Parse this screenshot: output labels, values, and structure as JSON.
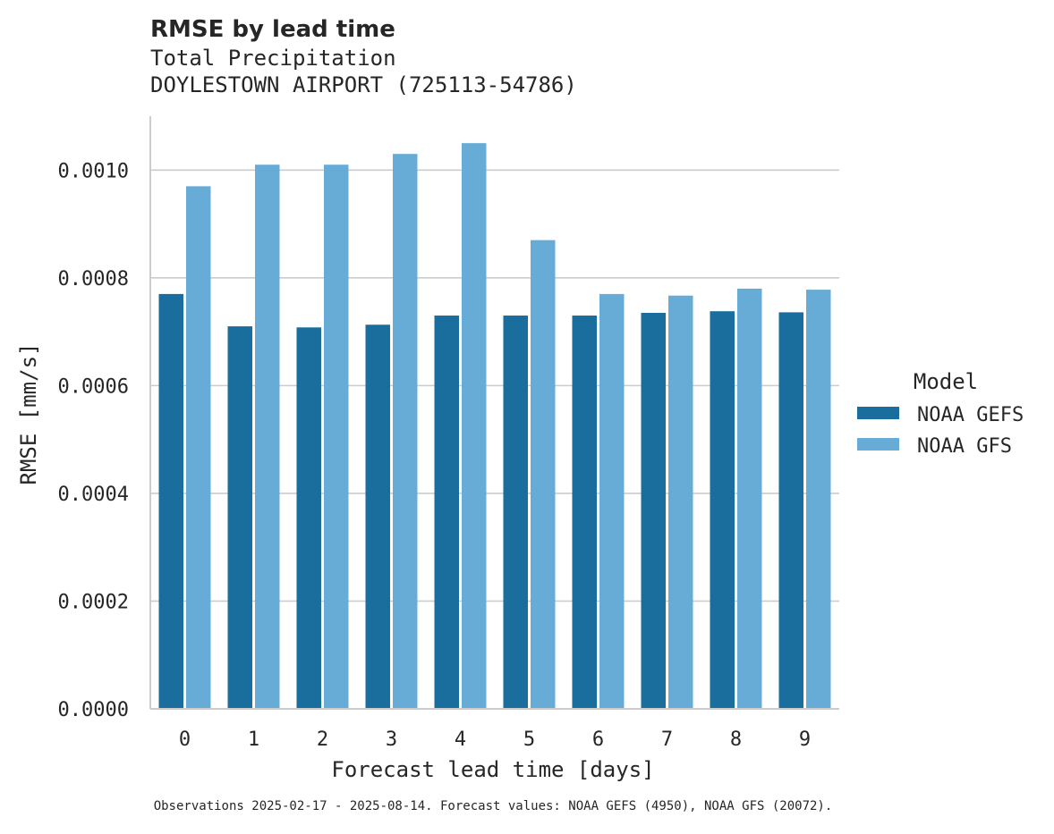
{
  "chart_data": {
    "type": "bar",
    "title": "RMSE by lead time",
    "subtitle_lines": [
      "Total Precipitation",
      "DOYLESTOWN AIRPORT (725113-54786)"
    ],
    "xlabel": "Forecast lead time [days]",
    "ylabel": "RMSE [mm/s]",
    "categories": [
      "0",
      "1",
      "2",
      "3",
      "4",
      "5",
      "6",
      "7",
      "8",
      "9"
    ],
    "ylim": [
      0,
      0.0011
    ],
    "yticks": [
      0.0,
      0.0002,
      0.0004,
      0.0006,
      0.0008,
      0.001
    ],
    "ytick_labels": [
      "0.0000",
      "0.0002",
      "0.0004",
      "0.0006",
      "0.0008",
      "0.0010"
    ],
    "grid": "horizontal",
    "legend": {
      "title": "Model",
      "placement": "right"
    },
    "series": [
      {
        "name": "NOAA GEFS",
        "color": "#1a6e9e",
        "values": [
          0.00077,
          0.00071,
          0.000708,
          0.000713,
          0.00073,
          0.00073,
          0.00073,
          0.000735,
          0.000738,
          0.000736
        ]
      },
      {
        "name": "NOAA GFS",
        "color": "#67acd6",
        "values": [
          0.00097,
          0.00101,
          0.00101,
          0.00103,
          0.00105,
          0.00087,
          0.00077,
          0.000767,
          0.00078,
          0.000778
        ]
      }
    ],
    "footnote": "Observations 2025-02-17 - 2025-08-14. Forecast values: NOAA GEFS (4950), NOAA GFS (20072)."
  }
}
